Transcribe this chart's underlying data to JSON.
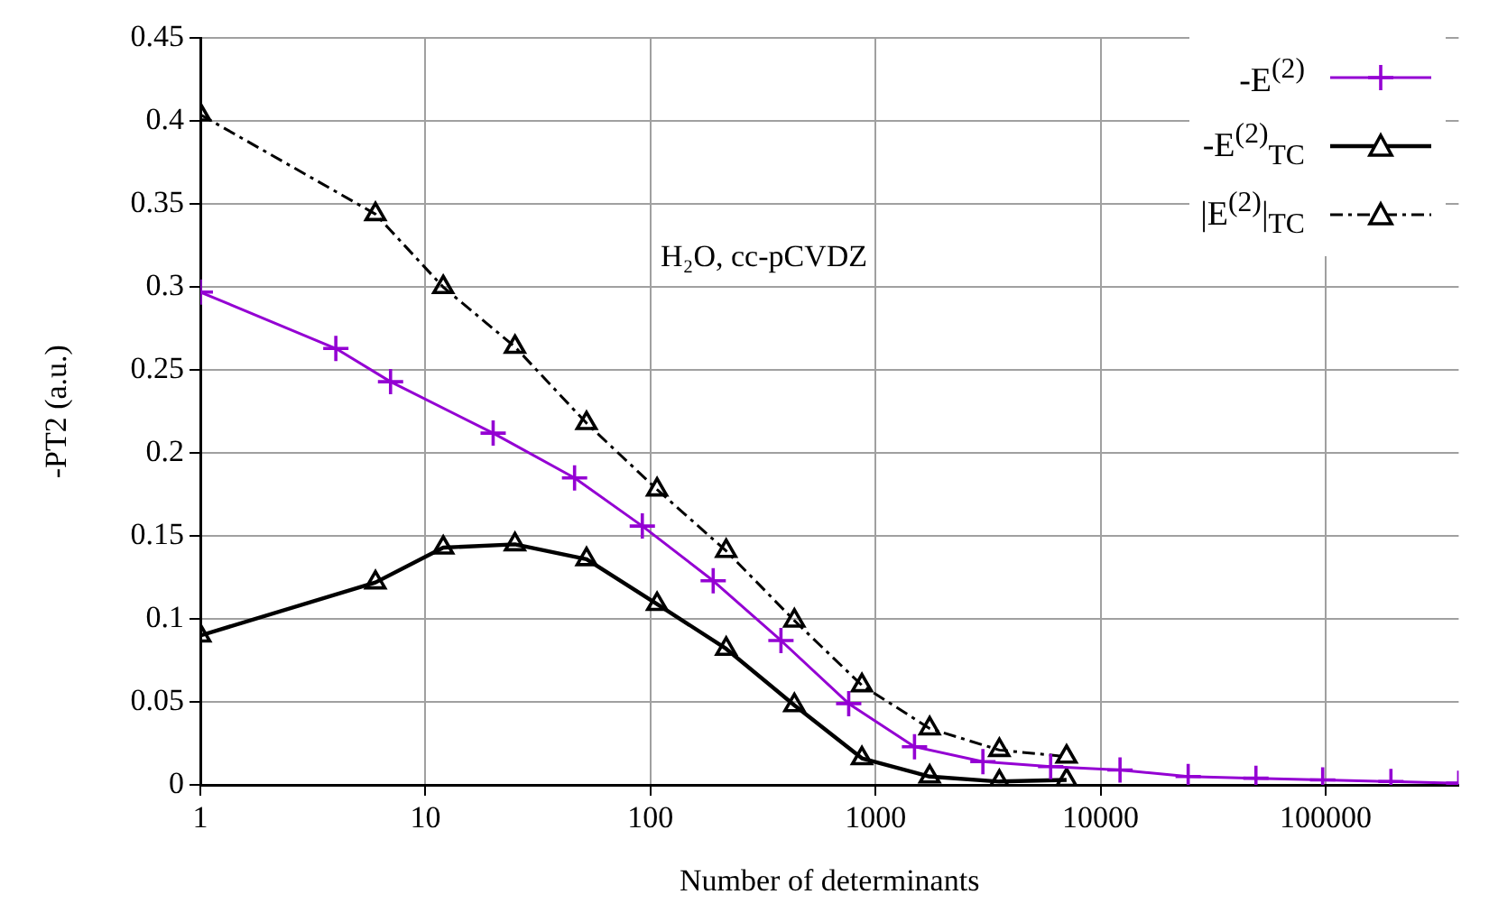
{
  "chart_data": {
    "type": "line",
    "xlabel": "Number of determinants",
    "ylabel": "-PT2 (a.u.)",
    "annotations": [
      "H₂O, cc-pCVDZ"
    ],
    "log": "x",
    "xlim": [
      1,
      390000
    ],
    "xticks": [
      1,
      10,
      100,
      1000,
      10000,
      100000
    ],
    "ylim": [
      0,
      0.45
    ],
    "yticks": [
      0,
      0.05,
      0.1,
      0.15,
      0.2,
      0.25,
      0.3,
      0.35,
      0.4,
      0.45
    ],
    "grid": true,
    "legend": "top right",
    "series": [
      {
        "name": "-E$^{(2)}$",
        "color": "#9400d3",
        "marker": "cross",
        "line_style": "solid",
        "x": [
          1,
          4,
          7,
          20,
          46,
          92,
          190,
          380,
          760,
          1490,
          3000,
          6000,
          12200,
          24500,
          49000,
          97000,
          195000,
          390000
        ],
        "values": [
          0.297,
          0.263,
          0.243,
          0.212,
          0.185,
          0.156,
          0.123,
          0.087,
          0.049,
          0.023,
          0.014,
          0.011,
          0.009,
          0.005,
          0.004,
          0.003,
          0.002,
          0.001
        ]
      },
      {
        "name": "-E$^{(2)}$$_{TC}$",
        "color": "#000000",
        "marker": "triangle",
        "line_style": "solid",
        "x": [
          1,
          6,
          12,
          25,
          52,
          107,
          217,
          436,
          870,
          1740,
          3550,
          7060
        ],
        "values": [
          0.09,
          0.122,
          0.143,
          0.145,
          0.136,
          0.109,
          0.082,
          0.048,
          0.016,
          0.005,
          0.002,
          0.003
        ]
      },
      {
        "name": "|E$^{(2)}$|$_{TC}$",
        "color": "#000000",
        "marker": "triangle",
        "line_style": "dashed",
        "x": [
          1,
          6,
          12,
          25,
          52,
          107,
          217,
          436,
          870,
          1740,
          3550,
          7060
        ],
        "values": [
          0.404,
          0.344,
          0.3,
          0.264,
          0.218,
          0.178,
          0.141,
          0.099,
          0.06,
          0.034,
          0.021,
          0.017
        ]
      }
    ]
  }
}
